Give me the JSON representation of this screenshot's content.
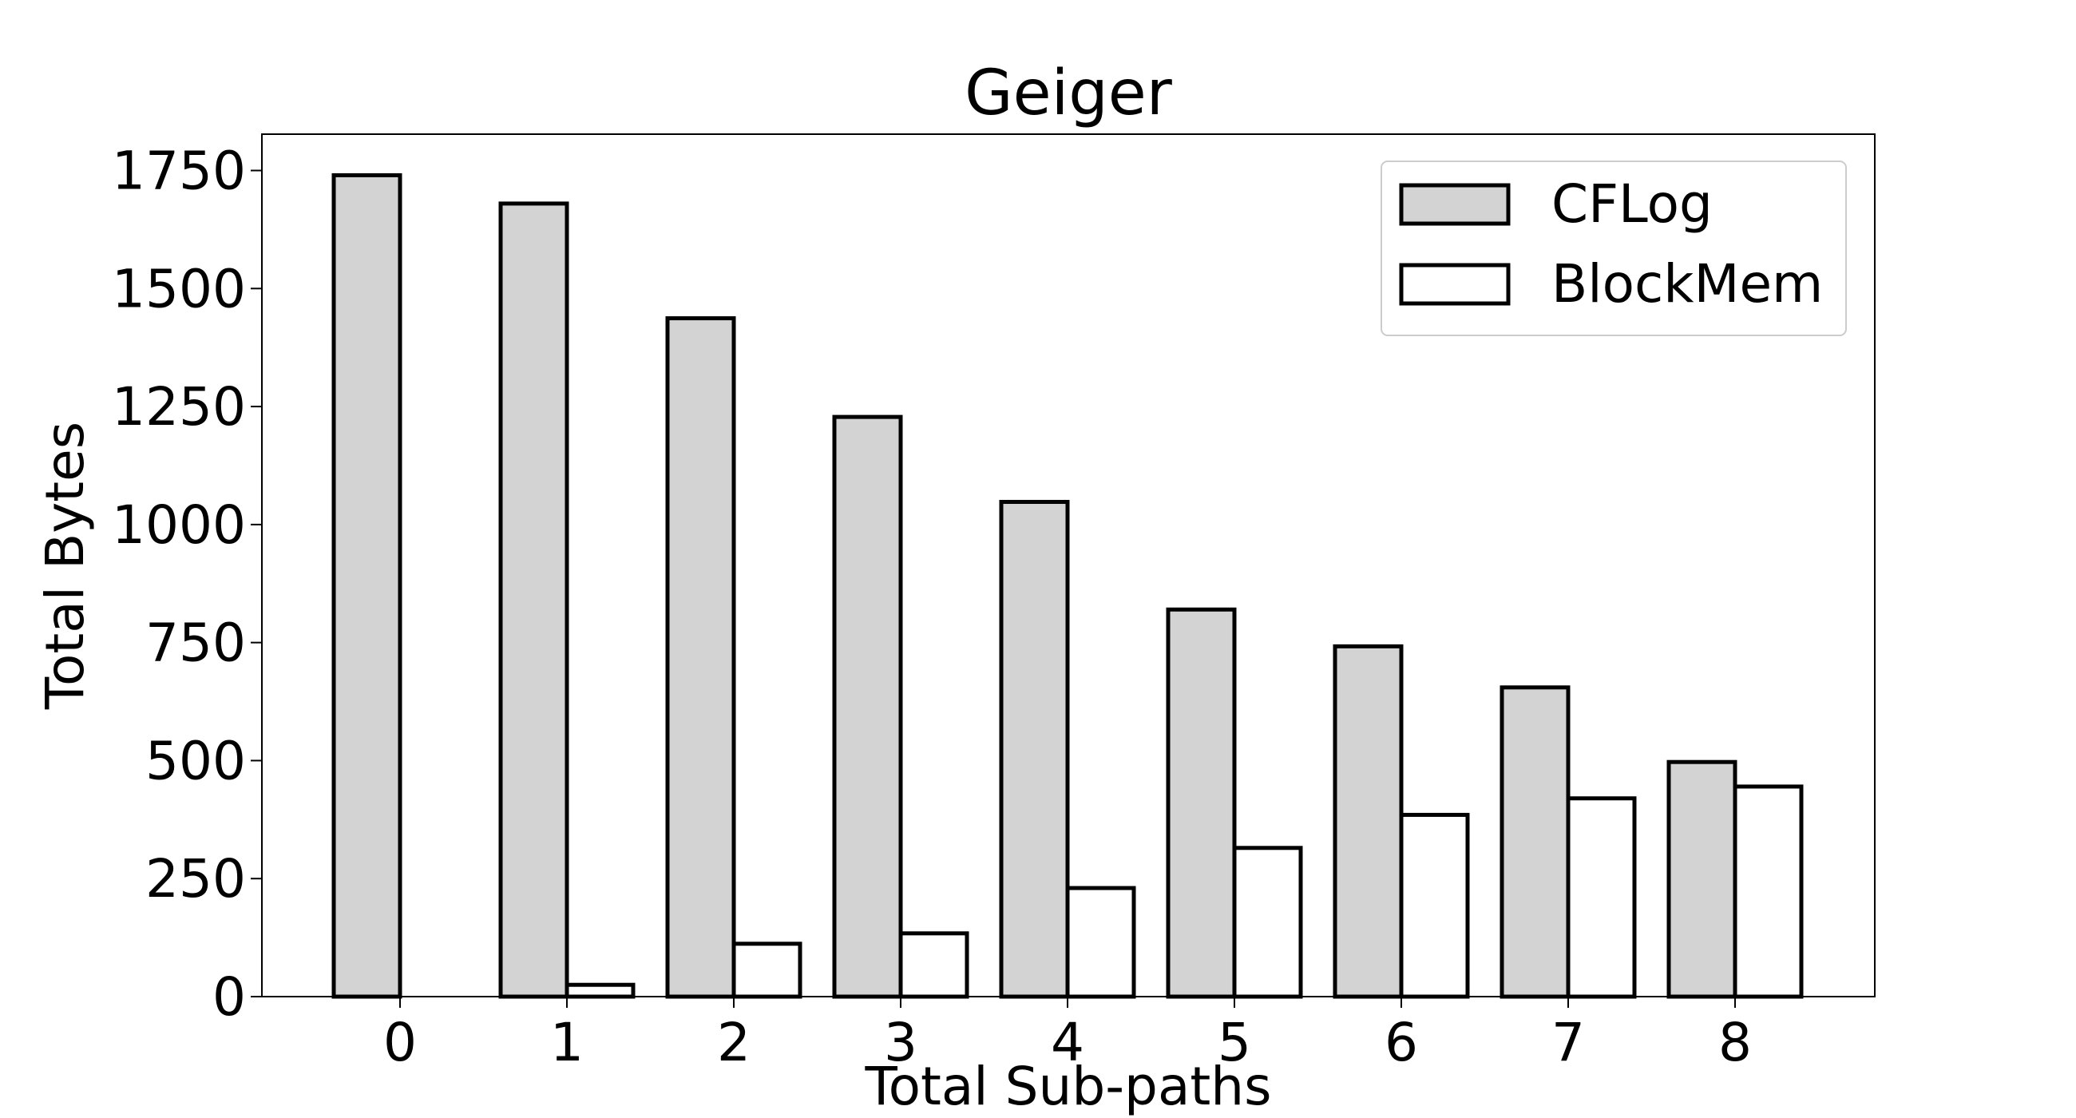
{
  "chart_data": {
    "type": "bar",
    "title": "Geiger",
    "xlabel": "Total Sub-paths",
    "ylabel": "Total Bytes",
    "categories": [
      "0",
      "1",
      "2",
      "3",
      "4",
      "5",
      "6",
      "7",
      "8"
    ],
    "series": [
      {
        "name": "CFLog",
        "values": [
          1740,
          1680,
          1437,
          1228,
          1048,
          820,
          742,
          655,
          497
        ],
        "fill": "#d3d3d3",
        "stroke": "#000000"
      },
      {
        "name": "BlockMem",
        "values": [
          0,
          25,
          112,
          134,
          230,
          315,
          385,
          420,
          445
        ],
        "fill": "#ffffff",
        "stroke": "#000000"
      }
    ],
    "ylim": [
      0,
      1827
    ],
    "yticks": [
      0,
      250,
      500,
      750,
      1000,
      1250,
      1500,
      1750
    ],
    "grid": false,
    "legend_position": "top-right"
  }
}
